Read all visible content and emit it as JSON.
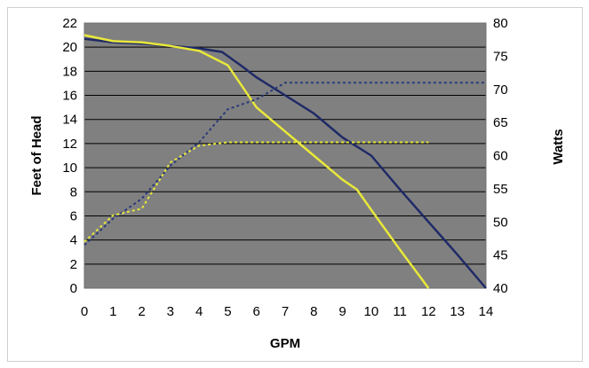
{
  "chart_data": {
    "type": "line",
    "title": "",
    "xlabel": "GPM",
    "ylabel": "Feet of Head",
    "y2label": "Watts",
    "xlim": [
      0,
      14
    ],
    "ylim": [
      0,
      22
    ],
    "y2lim": [
      40,
      80
    ],
    "x_ticks": [
      "0",
      "1",
      "2",
      "3",
      "4",
      "5",
      "6",
      "7",
      "8",
      "9",
      "10",
      "11",
      "12",
      "13",
      "14"
    ],
    "y_ticks": [
      "0",
      "2",
      "4",
      "6",
      "8",
      "10",
      "12",
      "14",
      "16",
      "18",
      "20",
      "22"
    ],
    "y2_ticks": [
      "40",
      "45",
      "50",
      "55",
      "60",
      "65",
      "70",
      "75",
      "80"
    ],
    "grid": true,
    "legend": "none",
    "plot_background": "#808080",
    "series": [
      {
        "axis": "left",
        "style": "solid",
        "color": "#1f2a66",
        "x": [
          0,
          1,
          2,
          3,
          4,
          4.8,
          5.5,
          6,
          7,
          8,
          9,
          10,
          11,
          12,
          13,
          14
        ],
        "y": [
          20.7,
          20.4,
          20.3,
          20.1,
          19.9,
          19.6,
          18.4,
          17.5,
          16.0,
          14.5,
          12.5,
          11.0,
          8.2,
          5.5,
          2.8,
          0
        ]
      },
      {
        "axis": "left",
        "style": "solid",
        "color": "#e8e83a",
        "x": [
          0,
          1,
          2,
          3,
          4,
          5,
          6,
          7,
          8,
          9,
          9.5,
          10,
          11,
          12
        ],
        "y": [
          21.0,
          20.5,
          20.4,
          20.1,
          19.7,
          18.5,
          15.0,
          13.0,
          11.0,
          9.0,
          8.2,
          6.5,
          3.2,
          0
        ]
      },
      {
        "axis": "right",
        "style": "dashed",
        "color": "#2a3a7a",
        "x": [
          0,
          1,
          2,
          3,
          4,
          5,
          6,
          7,
          8,
          9,
          10,
          11,
          12,
          13,
          14
        ],
        "y": [
          46.5,
          50.5,
          53.5,
          58.5,
          62.0,
          67.0,
          68.5,
          71.0,
          71.0,
          71.0,
          71.0,
          71.0,
          71.0,
          71.0,
          71.0
        ]
      },
      {
        "axis": "right",
        "style": "dashed",
        "color": "#e8e83a",
        "x": [
          0,
          1,
          2,
          3,
          4,
          5,
          6,
          7,
          8,
          9,
          10,
          11,
          12
        ],
        "y": [
          47.0,
          51.0,
          52.0,
          59.0,
          61.5,
          62.0,
          62.0,
          62.0,
          62.0,
          62.0,
          62.0,
          62.0,
          62.0
        ]
      }
    ]
  }
}
